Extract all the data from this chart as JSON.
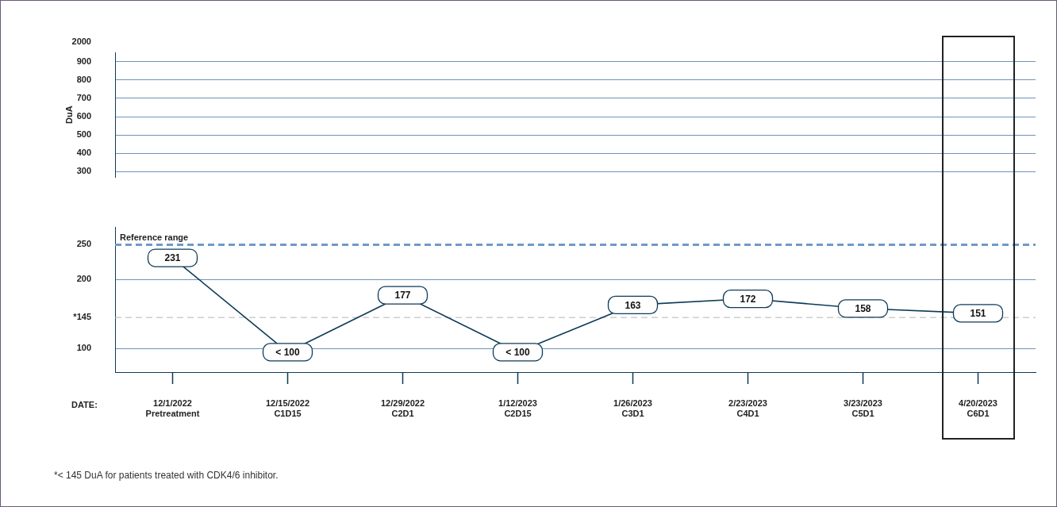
{
  "chart_data": [
    {
      "type": "line",
      "ylabel": "DuA",
      "categories": [
        null,
        null,
        null,
        null,
        null,
        null,
        null,
        null
      ],
      "ylim": [
        270,
        950
      ],
      "yticks": [
        300,
        400,
        500,
        600,
        700,
        800,
        900
      ],
      "annotations": [
        "2000"
      ],
      "grid": "y"
    },
    {
      "type": "line",
      "xlabel": "DATE:",
      "categories": [
        "12/1/2022\nPretreatment",
        "12/15/2022\nC1D15",
        "12/29/2022\nC2D1",
        "1/12/2023\nC2D15",
        "1/26/2023\nC3D1",
        "2/23/2023\nC4D1",
        "3/23/2023\nC5D1",
        "4/20/2023\nC6D1"
      ],
      "series": [
        {
          "color": "#0d3b57",
          "values": [
            231,
            95,
            177,
            95,
            163,
            172,
            158,
            151
          ],
          "value_labels": [
            "231",
            "< 100",
            "177",
            "< 100",
            "163",
            "172",
            "158",
            "151"
          ]
        }
      ],
      "ylim": [
        65,
        275
      ],
      "yticks": [
        100,
        {
          "value": 145,
          "label": "*145"
        },
        200,
        250
      ],
      "ref_lines": [
        {
          "axis": "y",
          "value": 250,
          "label": "Reference range",
          "color": "#6f99c9",
          "line_style": "dashed"
        },
        {
          "axis": "y",
          "value": 145,
          "label": null,
          "color": "#b5b5b5",
          "line_style": "dashed"
        }
      ],
      "annotations": [
        "*< 145 DuA for patients treated with CDK4/6 inhibitor."
      ],
      "grid": "y",
      "legend": false
    }
  ]
}
